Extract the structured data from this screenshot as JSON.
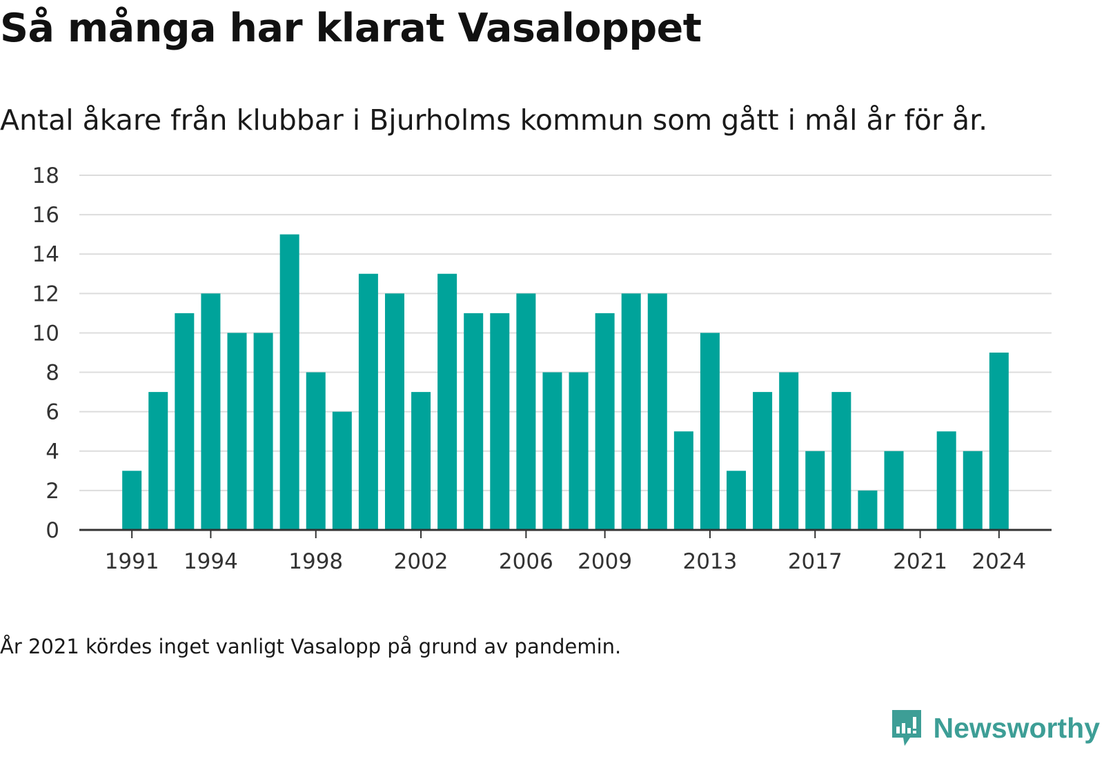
{
  "title": "Så många har klarat Vasaloppet",
  "subtitle": "Antal åkare från klubbar i Bjurholms kommun som gått i mål år för år.",
  "footnote": "År 2021 kördes inget vanligt Vasalopp på grund av pandemin.",
  "brand": {
    "name": "Newsworthy",
    "icon": "newsworthy-logo-icon",
    "color": "#3d9e96"
  },
  "chart_data": {
    "type": "bar",
    "title": "Så många har klarat Vasaloppet",
    "subtitle": "Antal åkare från klubbar i Bjurholms kommun som gått i mål år för år.",
    "xlabel": "",
    "ylabel": "",
    "bar_color": "#00a39a",
    "grid": true,
    "ylim": [
      0,
      18
    ],
    "yticks": [
      0,
      2,
      4,
      6,
      8,
      10,
      12,
      14,
      16,
      18
    ],
    "xlim": [
      1989,
      2026
    ],
    "xticks": [
      1991,
      1994,
      1998,
      2002,
      2006,
      2009,
      2013,
      2017,
      2021,
      2024
    ],
    "x": [
      1991,
      1992,
      1993,
      1994,
      1995,
      1996,
      1997,
      1998,
      1999,
      2000,
      2001,
      2002,
      2003,
      2004,
      2005,
      2006,
      2007,
      2008,
      2009,
      2010,
      2011,
      2012,
      2013,
      2014,
      2015,
      2016,
      2017,
      2018,
      2019,
      2020,
      2021,
      2022,
      2023,
      2024
    ],
    "values": [
      3,
      7,
      11,
      12,
      10,
      10,
      15,
      8,
      6,
      13,
      12,
      7,
      13,
      11,
      11,
      12,
      8,
      8,
      11,
      12,
      12,
      5,
      10,
      3,
      7,
      8,
      4,
      7,
      2,
      4,
      0,
      5,
      4,
      9
    ]
  }
}
